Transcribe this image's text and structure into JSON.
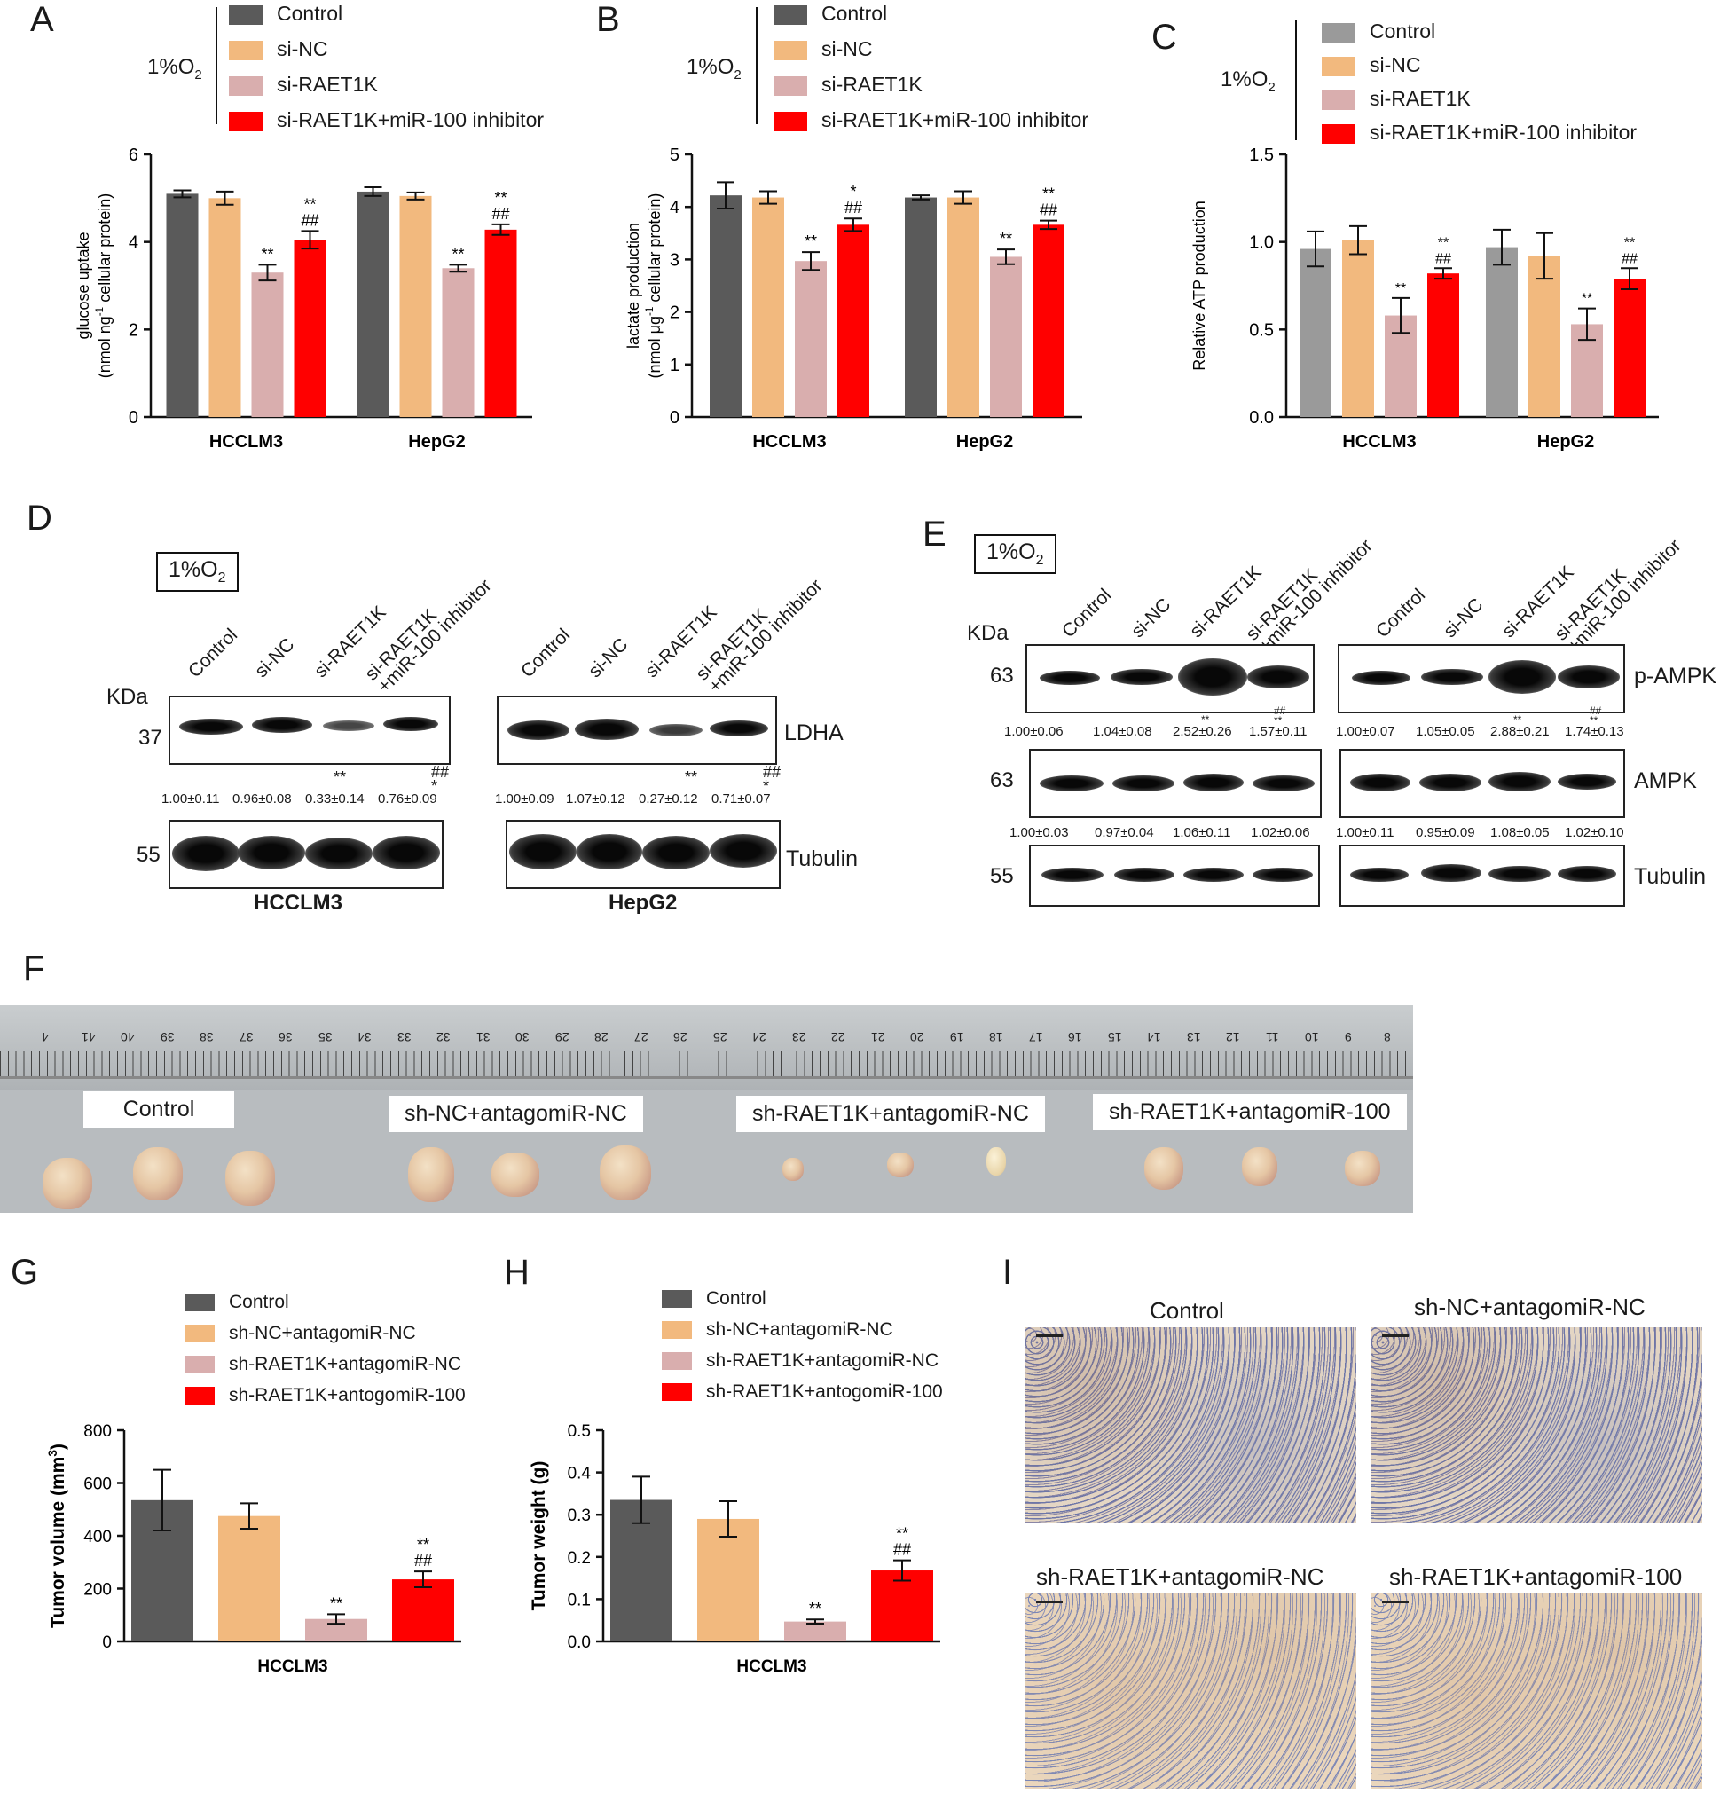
{
  "colors": {
    "control": "#5a5a5a",
    "si_nc": "#f2b97e",
    "si_raet1k": "#d9aeae",
    "combo": "#ff0000",
    "control_c": "#9a9a9a"
  },
  "panels": {
    "A": "A",
    "B": "B",
    "C": "C",
    "D": "D",
    "E": "E",
    "F": "F",
    "G": "G",
    "H": "H",
    "I": "I"
  },
  "oxygen": {
    "prefix": "1%O",
    "sub": "2"
  },
  "legend_si": [
    "Control",
    "si-NC",
    "si-RAET1K",
    "si-RAET1K+miR-100 inhibitor"
  ],
  "legend_sh": [
    "Control",
    "sh-NC+antagomiR-NC",
    "sh-RAET1K+antagomiR-NC",
    "sh-RAET1K+antogomiR-100"
  ],
  "chart_data": [
    {
      "panel": "A",
      "type": "bar",
      "categories": [
        "HCCLM3",
        "HepG2"
      ],
      "ylabel_main": "glucose uptake",
      "ylabel_unit_a": "(nmol ng",
      "ylabel_unit_sup": "-1",
      "ylabel_unit_b": " cellular protein)",
      "ylim": [
        0,
        6
      ],
      "yticks": [
        "0",
        "2",
        "4",
        "6"
      ],
      "series": [
        {
          "name": "Control",
          "values": [
            5.1,
            5.15
          ],
          "err": [
            0.08,
            0.1
          ]
        },
        {
          "name": "si-NC",
          "values": [
            5.0,
            5.05
          ],
          "err": [
            0.15,
            0.08
          ]
        },
        {
          "name": "si-RAET1K",
          "values": [
            3.3,
            3.4
          ],
          "err": [
            0.18,
            0.08
          ]
        },
        {
          "name": "si-RAET1K+miR-100 inhibitor",
          "values": [
            4.05,
            4.28
          ],
          "err": [
            0.2,
            0.12
          ]
        }
      ],
      "sig": [
        [
          "",
          "",
          "**",
          "**\n##"
        ],
        [
          "",
          "",
          "**",
          "**\n##"
        ]
      ]
    },
    {
      "panel": "B",
      "type": "bar",
      "categories": [
        "HCCLM3",
        "HepG2"
      ],
      "ylabel_main": "lactate production",
      "ylabel_unit_a": "(nmol μg",
      "ylabel_unit_sup": "-1",
      "ylabel_unit_b": " cellular protein)",
      "ylim": [
        0,
        5
      ],
      "yticks": [
        "0",
        "1",
        "2",
        "3",
        "4",
        "5"
      ],
      "series": [
        {
          "name": "Control",
          "values": [
            4.22,
            4.18
          ],
          "err": [
            0.25,
            0.04
          ]
        },
        {
          "name": "si-NC",
          "values": [
            4.18,
            4.18
          ],
          "err": [
            0.12,
            0.12
          ]
        },
        {
          "name": "si-RAET1K",
          "values": [
            2.97,
            3.05
          ],
          "err": [
            0.17,
            0.14
          ]
        },
        {
          "name": "si-RAET1K+miR-100 inhibitor",
          "values": [
            3.66,
            3.66
          ],
          "err": [
            0.12,
            0.08
          ]
        }
      ],
      "sig": [
        [
          "",
          "",
          "**",
          "*\n##"
        ],
        [
          "",
          "",
          "**",
          "**\n##"
        ]
      ]
    },
    {
      "panel": "C",
      "type": "bar",
      "categories": [
        "HCCLM3",
        "HepG2"
      ],
      "ylabel_main": "Relative ATP production",
      "ylabel_unit_a": "",
      "ylabel_unit_sup": "",
      "ylabel_unit_b": "",
      "ylim": [
        0,
        1.5
      ],
      "yticks": [
        "0.0",
        "0.5",
        "1.0",
        "1.5"
      ],
      "series": [
        {
          "name": "Control",
          "values": [
            0.96,
            0.97
          ],
          "err": [
            0.1,
            0.1
          ]
        },
        {
          "name": "si-NC",
          "values": [
            1.01,
            0.92
          ],
          "err": [
            0.08,
            0.13
          ]
        },
        {
          "name": "si-RAET1K",
          "values": [
            0.58,
            0.53
          ],
          "err": [
            0.1,
            0.09
          ]
        },
        {
          "name": "si-RAET1K+miR-100 inhibitor",
          "values": [
            0.82,
            0.79
          ],
          "err": [
            0.03,
            0.06
          ]
        }
      ],
      "sig": [
        [
          "",
          "",
          "**",
          "**\n##"
        ],
        [
          "",
          "",
          "**",
          "**\n##"
        ]
      ]
    },
    {
      "panel": "G",
      "type": "bar",
      "categories": [
        "HCCLM3"
      ],
      "ylabel_main": "Tumor volume (mm",
      "ylabel_unit_a": "",
      "ylabel_unit_sup": "3",
      "ylabel_unit_b": ")",
      "ylim": [
        0,
        800
      ],
      "yticks": [
        "0",
        "200",
        "400",
        "600",
        "800"
      ],
      "series": [
        {
          "name": "Control",
          "values": [
            535
          ],
          "err": [
            115
          ]
        },
        {
          "name": "sh-NC+antagomiR-NC",
          "values": [
            475
          ],
          "err": [
            48
          ]
        },
        {
          "name": "sh-RAET1K+antagomiR-NC",
          "values": [
            85
          ],
          "err": [
            18
          ]
        },
        {
          "name": "sh-RAET1K+antogomiR-100",
          "values": [
            235
          ],
          "err": [
            30
          ]
        }
      ],
      "sig": [
        [
          "",
          "",
          "**",
          "**\n##"
        ]
      ]
    },
    {
      "panel": "H",
      "type": "bar",
      "categories": [
        "HCCLM3"
      ],
      "ylabel_main": "Tumor weight (g)",
      "ylabel_unit_a": "",
      "ylabel_unit_sup": "",
      "ylabel_unit_b": "",
      "ylim": [
        0,
        0.5
      ],
      "yticks": [
        "0.0",
        "0.1",
        "0.2",
        "0.3",
        "0.4",
        "0.5"
      ],
      "series": [
        {
          "name": "Control",
          "values": [
            0.335
          ],
          "err": [
            0.055
          ]
        },
        {
          "name": "sh-NC+antagomiR-NC",
          "values": [
            0.29
          ],
          "err": [
            0.042
          ]
        },
        {
          "name": "sh-RAET1K+antagomiR-NC",
          "values": [
            0.047
          ],
          "err": [
            0.005
          ]
        },
        {
          "name": "sh-RAET1K+antogomiR-100",
          "values": [
            0.168
          ],
          "err": [
            0.024
          ]
        }
      ],
      "sig": [
        [
          "",
          "",
          "**",
          "**\n##"
        ]
      ]
    }
  ],
  "panel_D": {
    "kda": "KDa",
    "lanes": [
      "Control",
      "si-NC",
      "si-RAET1K",
      "si-RAET1K\n+miR-100 inhibitor"
    ],
    "mw_ldha": "37",
    "mw_tub": "55",
    "ldha": "LDHA",
    "tubulin": "Tubulin",
    "hcclm3": {
      "name": "HCCLM3",
      "quant": [
        "1.00±0.11",
        "0.96±0.08",
        "0.33±0.14",
        "0.76±0.09"
      ],
      "sig": [
        "",
        "",
        "**",
        "##\n*"
      ]
    },
    "hepg2": {
      "name": "HepG2",
      "quant": [
        "1.00±0.09",
        "1.07±0.12",
        "0.27±0.12",
        "0.71±0.07"
      ],
      "sig": [
        "",
        "",
        "**",
        "##\n*"
      ]
    }
  },
  "panel_E": {
    "kda": "KDa",
    "lanes": [
      "Control",
      "si-NC",
      "si-RAET1K",
      "si-RAET1K\n+miR-100 inhibitor"
    ],
    "mw": [
      "63",
      "63",
      "55"
    ],
    "names": [
      "p-AMPK",
      "AMPK",
      "Tubulin"
    ],
    "left": {
      "pampk": [
        "1.00±0.06",
        "1.04±0.08",
        "2.52±0.26",
        "1.57±0.11"
      ],
      "pampk_sig": [
        "",
        "",
        "**",
        "##\n**"
      ],
      "ampk": [
        "1.00±0.03",
        "0.97±0.04",
        "1.06±0.11",
        "1.02±0.06"
      ]
    },
    "right": {
      "pampk": [
        "1.00±0.07",
        "1.05±0.05",
        "2.88±0.21",
        "1.74±0.13"
      ],
      "pampk_sig": [
        "",
        "",
        "**",
        "##\n**"
      ],
      "ampk": [
        "1.00±0.11",
        "0.95±0.09",
        "1.08±0.05",
        "1.02±0.10"
      ]
    }
  },
  "panel_F": {
    "labels": [
      "Control",
      "sh-NC+antagomiR-NC",
      "sh-RAET1K+antagomiR-NC",
      "sh-RAET1K+antagomiR-100"
    ],
    "ruler": [
      "8",
      "9",
      "10",
      "11",
      "12",
      "13",
      "14",
      "15",
      "16",
      "17",
      "18",
      "19",
      "20",
      "21",
      "22",
      "23",
      "24",
      "25",
      "26",
      "27",
      "28",
      "29",
      "30",
      "31",
      "32",
      "33",
      "34",
      "35",
      "36",
      "37",
      "38",
      "39",
      "40",
      "41",
      "4"
    ]
  },
  "panel_I": {
    "titles": [
      "Control",
      "sh-NC+antagomiR-NC",
      "sh-RAET1K+antagomiR-NC",
      "sh-RAET1K+antagomiR-100"
    ]
  }
}
